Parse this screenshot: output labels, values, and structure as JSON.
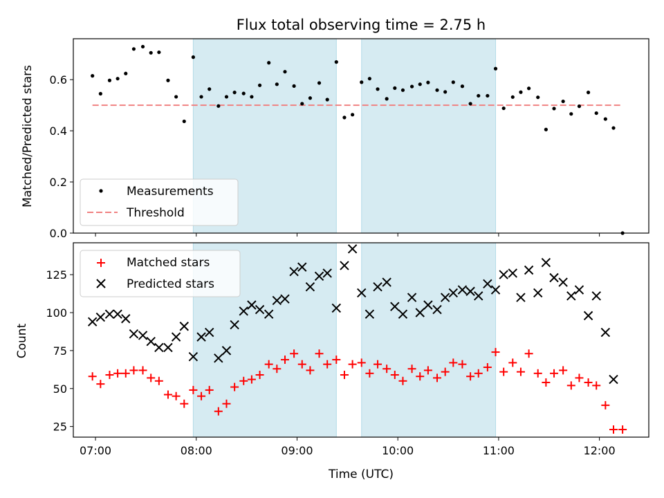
{
  "title": "Flux total observing time = 2.75 h",
  "chart_data": [
    {
      "type": "scatter",
      "title": "Flux total observing time = 2.75 h",
      "xlabel": "",
      "ylabel": "Matched/Predicted stars",
      "xlim": [
        6.78,
        12.49
      ],
      "ylim": [
        0,
        0.76
      ],
      "yticks": [
        0.0,
        0.2,
        0.4,
        0.6
      ],
      "xticks": [
        7,
        8,
        9,
        10,
        11,
        12
      ],
      "grid": false,
      "legend": "lower-left",
      "shaded_spans": [
        [
          7.97,
          9.39
        ],
        [
          9.64,
          10.97
        ]
      ],
      "threshold": {
        "name": "Threshold",
        "value": 0.5,
        "x": [
          6.97,
          12.23
        ],
        "color": "#f08080"
      },
      "series": [
        {
          "name": "Measurements",
          "color": "#000000",
          "x": [
            6.97,
            7.05,
            7.14,
            7.22,
            7.3,
            7.38,
            7.47,
            7.55,
            7.63,
            7.72,
            7.8,
            7.88,
            7.97,
            8.05,
            8.13,
            8.22,
            8.3,
            8.38,
            8.47,
            8.55,
            8.63,
            8.72,
            8.8,
            8.88,
            8.97,
            9.05,
            9.13,
            9.22,
            9.3,
            9.39,
            9.47,
            9.55,
            9.64,
            9.72,
            9.8,
            9.89,
            9.97,
            10.05,
            10.14,
            10.22,
            10.3,
            10.39,
            10.47,
            10.55,
            10.64,
            10.72,
            10.8,
            10.89,
            10.97,
            11.05,
            11.14,
            11.22,
            11.3,
            11.39,
            11.47,
            11.55,
            11.64,
            11.72,
            11.8,
            11.89,
            11.97,
            12.06,
            12.14,
            12.23
          ],
          "y": [
            0.615,
            0.545,
            0.597,
            0.604,
            0.624,
            0.72,
            0.729,
            0.705,
            0.707,
            0.597,
            0.533,
            0.437,
            0.688,
            0.533,
            0.563,
            0.497,
            0.533,
            0.55,
            0.546,
            0.533,
            0.578,
            0.666,
            0.582,
            0.631,
            0.575,
            0.506,
            0.528,
            0.587,
            0.522,
            0.669,
            0.452,
            0.463,
            0.59,
            0.604,
            0.563,
            0.525,
            0.567,
            0.559,
            0.573,
            0.582,
            0.589,
            0.559,
            0.552,
            0.59,
            0.574,
            0.506,
            0.537,
            0.537,
            0.643,
            0.488,
            0.532,
            0.551,
            0.566,
            0.531,
            0.405,
            0.487,
            0.515,
            0.466,
            0.496,
            0.55,
            0.469,
            0.446,
            0.411,
            0.0
          ]
        }
      ]
    },
    {
      "type": "scatter",
      "title": "",
      "xlabel": "Time (UTC)",
      "ylabel": "Count",
      "xlim": [
        6.78,
        12.49
      ],
      "ylim": [
        18,
        146
      ],
      "yticks": [
        25,
        50,
        75,
        100,
        125
      ],
      "xticks": [
        7,
        8,
        9,
        10,
        11,
        12
      ],
      "xticklabels": [
        "07:00",
        "08:00",
        "09:00",
        "10:00",
        "11:00",
        "12:00"
      ],
      "grid": false,
      "legend": "upper-left",
      "shaded_spans": [
        [
          7.97,
          9.39
        ],
        [
          9.64,
          10.97
        ]
      ],
      "series": [
        {
          "name": "Matched stars",
          "marker": "plus",
          "color": "#ff0000",
          "x": [
            6.97,
            7.05,
            7.14,
            7.22,
            7.3,
            7.38,
            7.47,
            7.55,
            7.63,
            7.72,
            7.8,
            7.88,
            7.97,
            8.05,
            8.13,
            8.22,
            8.3,
            8.38,
            8.47,
            8.55,
            8.63,
            8.72,
            8.8,
            8.88,
            8.97,
            9.05,
            9.13,
            9.22,
            9.3,
            9.39,
            9.47,
            9.55,
            9.64,
            9.72,
            9.8,
            9.89,
            9.97,
            10.05,
            10.14,
            10.22,
            10.3,
            10.39,
            10.47,
            10.55,
            10.64,
            10.72,
            10.8,
            10.89,
            10.97,
            11.05,
            11.14,
            11.22,
            11.3,
            11.39,
            11.47,
            11.55,
            11.64,
            11.72,
            11.8,
            11.89,
            11.97,
            12.06,
            12.14,
            12.23
          ],
          "y": [
            58,
            53,
            59,
            60,
            60,
            62,
            62,
            57,
            55,
            46,
            45,
            40,
            49,
            45,
            49,
            35,
            40,
            51,
            55,
            56,
            59,
            66,
            63,
            69,
            73,
            66,
            62,
            73,
            66,
            69,
            59,
            66,
            67,
            60,
            66,
            63,
            59,
            55,
            63,
            58,
            62,
            57,
            61,
            67,
            66,
            58,
            60,
            64,
            74,
            61,
            67,
            61,
            73,
            60,
            54,
            60,
            62,
            52,
            57,
            54,
            52,
            39,
            23,
            23
          ]
        },
        {
          "name": "Predicted stars",
          "marker": "x",
          "color": "#000000",
          "x": [
            6.97,
            7.05,
            7.14,
            7.22,
            7.3,
            7.38,
            7.47,
            7.55,
            7.63,
            7.72,
            7.8,
            7.88,
            7.97,
            8.05,
            8.13,
            8.22,
            8.3,
            8.38,
            8.47,
            8.55,
            8.63,
            8.72,
            8.8,
            8.88,
            8.97,
            9.05,
            9.13,
            9.22,
            9.3,
            9.39,
            9.47,
            9.55,
            9.64,
            9.72,
            9.8,
            9.89,
            9.97,
            10.05,
            10.14,
            10.22,
            10.3,
            10.39,
            10.47,
            10.55,
            10.64,
            10.72,
            10.8,
            10.89,
            10.97,
            11.05,
            11.14,
            11.22,
            11.3,
            11.39,
            11.47,
            11.55,
            11.64,
            11.72,
            11.8,
            11.89,
            11.97,
            12.06,
            12.14
          ],
          "y": [
            94,
            97,
            99,
            99,
            96,
            86,
            85,
            81,
            77,
            77,
            84,
            91,
            71,
            84,
            87,
            70,
            75,
            92,
            101,
            105,
            102,
            99,
            108,
            109,
            127,
            130,
            117,
            124,
            126,
            103,
            131,
            142,
            113,
            99,
            117,
            120,
            104,
            99,
            110,
            100,
            105,
            102,
            110,
            113,
            115,
            114,
            111,
            119,
            115,
            125,
            126,
            110,
            128,
            113,
            133,
            123,
            120,
            111,
            115,
            98,
            111,
            87,
            56
          ]
        }
      ]
    }
  ],
  "legend_top": [
    "Measurements",
    "Threshold"
  ],
  "legend_bottom": [
    "Matched stars",
    "Predicted stars"
  ]
}
